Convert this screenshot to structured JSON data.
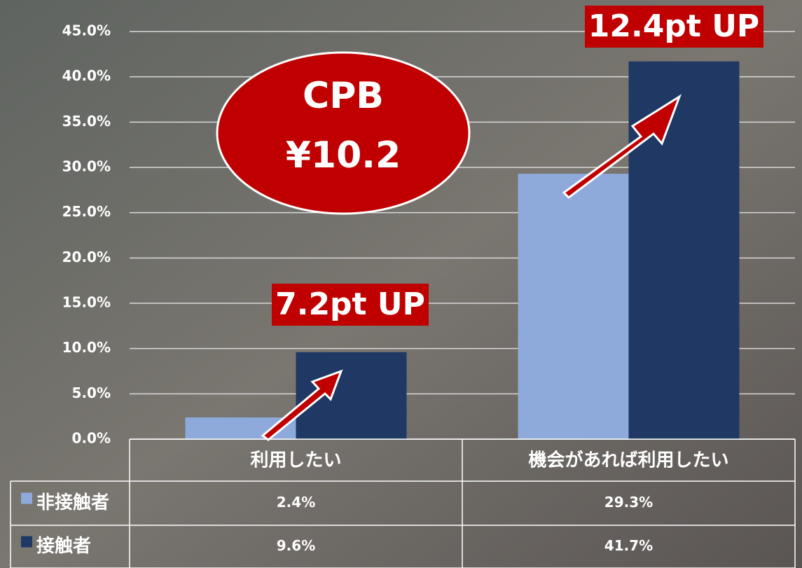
{
  "chart_data": {
    "type": "bar",
    "categories": [
      "利用したい",
      "機会があれば利用したい"
    ],
    "series": [
      {
        "name": "非接触者",
        "color": "#8eaadb",
        "values": [
          2.4,
          29.3
        ],
        "value_labels": [
          "2.4%",
          "29.3%"
        ]
      },
      {
        "name": "接触者",
        "color": "#1f3864",
        "values": [
          9.6,
          41.7
        ],
        "value_labels": [
          "9.6%",
          "41.7%"
        ]
      }
    ],
    "ylim": [
      0,
      45
    ],
    "yticks": [
      {
        "value": 0,
        "label": "0.0%"
      },
      {
        "value": 5,
        "label": "5.0%"
      },
      {
        "value": 10,
        "label": "10.0%"
      },
      {
        "value": 15,
        "label": "15.0%"
      },
      {
        "value": 20,
        "label": "20.0%"
      },
      {
        "value": 25,
        "label": "25.0%"
      },
      {
        "value": 30,
        "label": "30.0%"
      },
      {
        "value": 35,
        "label": "35.0%"
      },
      {
        "value": 40,
        "label": "40.0%"
      },
      {
        "value": 45,
        "label": "45.0%"
      }
    ],
    "grid": true,
    "annotations": [
      "CPB",
      "¥10.2",
      "12.4pt UP",
      "7.2pt UP"
    ]
  }
}
